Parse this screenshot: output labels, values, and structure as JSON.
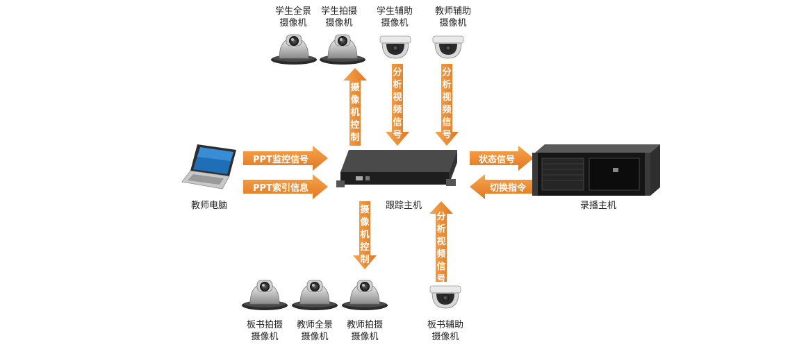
{
  "nodes": {
    "tracking_host": "跟踪主机",
    "teacher_pc": "教师电脑",
    "recording_host": "录播主机",
    "student_wide_cam": "学生全景\n摄像机",
    "student_shoot_cam": "学生拍摄\n摄像机",
    "student_aux_cam": "学生辅助\n摄像机",
    "teacher_aux_cam": "教师辅助\n摄像机",
    "board_shoot_cam": "板书拍摄\n摄像机",
    "teacher_wide_cam": "教师全景\n摄像机",
    "teacher_shoot_cam": "教师拍摄\n摄像机",
    "board_aux_cam": "板书辅助\n摄像机"
  },
  "arrows": {
    "ppt_monitor": "PPT监控信号",
    "ppt_index": "PPT索引信息",
    "status_signal": "状态信号",
    "switch_cmd": "切换指令",
    "cam_control_top": "摄像机控制",
    "analyze_student": "分析视频信号",
    "analyze_teacher": "分析视频信号",
    "cam_control_bottom": "摄像机控制",
    "analyze_board": "分析视频信号"
  },
  "colors": {
    "arrow": "#f08a2c",
    "arrow_dark": "#d8701a"
  },
  "icons": {
    "ptz_camera": "ptz-camera-icon",
    "dome_camera": "dome-camera-icon",
    "laptop": "laptop-icon",
    "tracker_box": "tracker-box-icon",
    "rack_server": "rack-server-icon"
  }
}
